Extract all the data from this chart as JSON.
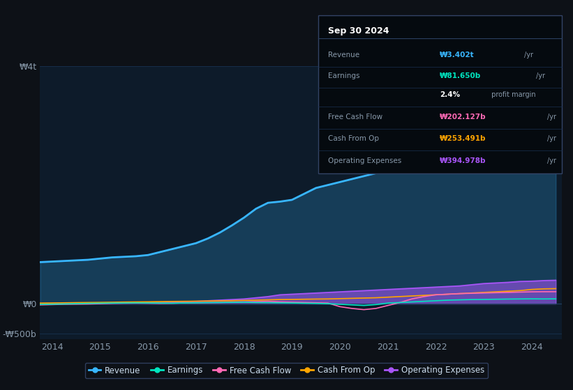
{
  "bg_color": "#0d1117",
  "plot_bg_color": "#0d1b2a",
  "grid_color": "#1e3a5f",
  "years_x": [
    2013.75,
    2014,
    2014.25,
    2014.5,
    2014.75,
    2015,
    2015.25,
    2015.5,
    2015.75,
    2016,
    2016.25,
    2016.5,
    2016.75,
    2017,
    2017.25,
    2017.5,
    2017.75,
    2018,
    2018.25,
    2018.5,
    2018.75,
    2019,
    2019.25,
    2019.5,
    2019.75,
    2020,
    2020.25,
    2020.5,
    2020.75,
    2021,
    2021.25,
    2021.5,
    2021.75,
    2022,
    2022.25,
    2022.5,
    2022.75,
    2023,
    2023.25,
    2023.5,
    2023.75,
    2024,
    2024.25,
    2024.5
  ],
  "revenue": [
    700,
    710,
    720,
    730,
    740,
    760,
    780,
    790,
    800,
    820,
    870,
    920,
    970,
    1020,
    1100,
    1200,
    1320,
    1450,
    1600,
    1700,
    1720,
    1750,
    1850,
    1950,
    2000,
    2050,
    2100,
    2150,
    2200,
    2300,
    2450,
    2600,
    2700,
    2850,
    3000,
    3100,
    3150,
    3200,
    3280,
    3350,
    3380,
    3402,
    3390,
    3402
  ],
  "earnings": [
    -10,
    -8,
    -5,
    0,
    5,
    8,
    10,
    12,
    15,
    12,
    10,
    8,
    12,
    15,
    18,
    20,
    22,
    25,
    20,
    18,
    15,
    12,
    8,
    5,
    0,
    -10,
    -20,
    -30,
    -15,
    10,
    20,
    30,
    40,
    50,
    60,
    65,
    70,
    72,
    75,
    78,
    80,
    81.65,
    80,
    81.65
  ],
  "free_cash_flow": [
    -20,
    -15,
    -10,
    -8,
    -5,
    0,
    5,
    8,
    10,
    8,
    5,
    8,
    12,
    15,
    18,
    20,
    25,
    30,
    35,
    40,
    30,
    25,
    20,
    15,
    10,
    -50,
    -80,
    -100,
    -80,
    -30,
    20,
    80,
    120,
    150,
    160,
    170,
    175,
    180,
    185,
    190,
    195,
    200,
    202,
    202.127
  ],
  "cash_from_op": [
    10,
    12,
    15,
    18,
    20,
    22,
    25,
    28,
    30,
    32,
    35,
    38,
    40,
    42,
    45,
    48,
    50,
    55,
    60,
    65,
    70,
    72,
    75,
    78,
    80,
    85,
    90,
    95,
    100,
    110,
    120,
    130,
    140,
    150,
    160,
    170,
    180,
    190,
    200,
    210,
    220,
    240,
    250,
    253.491
  ],
  "operating_expenses": [
    5,
    6,
    7,
    8,
    9,
    10,
    12,
    15,
    18,
    20,
    25,
    30,
    35,
    40,
    50,
    60,
    70,
    80,
    100,
    120,
    150,
    160,
    170,
    180,
    190,
    200,
    210,
    220,
    230,
    240,
    250,
    260,
    270,
    280,
    290,
    300,
    320,
    340,
    350,
    360,
    375,
    380,
    390,
    394.978
  ],
  "revenue_color": "#38b6ff",
  "earnings_color": "#00e5c0",
  "free_cash_flow_color": "#ff69b4",
  "cash_from_op_color": "#ffa500",
  "operating_expenses_color": "#a855f7",
  "ylim_top": 4000,
  "ylim_bottom": -600,
  "xtick_years": [
    2014,
    2015,
    2016,
    2017,
    2018,
    2019,
    2020,
    2021,
    2022,
    2023,
    2024
  ],
  "legend_labels": [
    "Revenue",
    "Earnings",
    "Free Cash Flow",
    "Cash From Op",
    "Operating Expenses"
  ],
  "legend_colors": [
    "#38b6ff",
    "#00e5c0",
    "#ff69b4",
    "#ffa500",
    "#a855f7"
  ],
  "info_box": {
    "date": "Sep 30 2024",
    "rows": [
      {
        "label": "Revenue",
        "value": "₩3.402t",
        "unit": "/yr",
        "color": "#38b6ff"
      },
      {
        "label": "Earnings",
        "value": "₩81.650b",
        "unit": "/yr",
        "color": "#00e5c0"
      },
      {
        "label": "",
        "value": "2.4%",
        "unit": " profit margin",
        "color": "#ffffff"
      },
      {
        "label": "Free Cash Flow",
        "value": "₩202.127b",
        "unit": "/yr",
        "color": "#ff69b4"
      },
      {
        "label": "Cash From Op",
        "value": "₩253.491b",
        "unit": "/yr",
        "color": "#ffa500"
      },
      {
        "label": "Operating Expenses",
        "value": "₩394.978b",
        "unit": "/yr",
        "color": "#a855f7"
      }
    ]
  }
}
